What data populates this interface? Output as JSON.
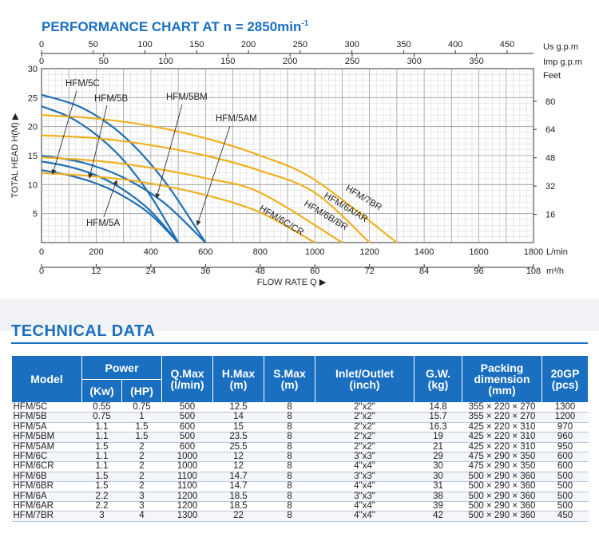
{
  "chart_data": {
    "type": "line",
    "title": "PERFORMANCE CHART AT n = 2850min",
    "title_superscript": "-1",
    "xlabel": "FLOW RATE Q ▶",
    "ylabel": "TOTAL HEAD H(M) ▶",
    "x_unit": "L/min",
    "x2_unit": "m³/h",
    "top_unit_us": "Us g.p.m",
    "top_unit_imp": "Imp g.p.m",
    "right_unit": "Feet",
    "xlim": [
      0,
      1800
    ],
    "ylim": [
      0,
      30
    ],
    "grid": true,
    "x_ticks": [
      "0",
      "200",
      "400",
      "600",
      "800",
      "1000",
      "1200",
      "1400",
      "1600",
      "1800"
    ],
    "m3h_ticks": [
      "0",
      "12",
      "24",
      "36",
      "48",
      "60",
      "72",
      "84",
      "96",
      "108"
    ],
    "us_gpm_ticks": [
      "0",
      "50",
      "100",
      "150",
      "200",
      "250",
      "300",
      "350",
      "400",
      "450"
    ],
    "imp_gpm_ticks": [
      "0",
      "50",
      "100",
      "150",
      "200",
      "250",
      "300",
      "350"
    ],
    "y_ticks": [
      "5",
      "10",
      "15",
      "20",
      "25",
      "30"
    ],
    "feet_ticks": [
      "16",
      "32",
      "48",
      "64",
      "80"
    ],
    "series": [
      {
        "name": "HFM/5C",
        "color": "#1f6fb5",
        "x": [
          0,
          100,
          200,
          300,
          400,
          500
        ],
        "y": [
          12.5,
          11.6,
          10.2,
          8.0,
          4.8,
          0
        ]
      },
      {
        "name": "HFM/5B",
        "color": "#1f6fb5",
        "x": [
          0,
          100,
          200,
          300,
          400,
          500
        ],
        "y": [
          14,
          13.1,
          11.6,
          9.1,
          5.4,
          0
        ]
      },
      {
        "name": "HFM/5A",
        "color": "#1f6fb5",
        "x": [
          0,
          150,
          300,
          450,
          600
        ],
        "y": [
          15,
          13.8,
          11.2,
          6.8,
          0
        ]
      },
      {
        "name": "HFM/5BM",
        "color": "#1f6fb5",
        "x": [
          0,
          100,
          200,
          300,
          400,
          500
        ],
        "y": [
          23.5,
          21.7,
          18.6,
          14.2,
          8.0,
          0
        ]
      },
      {
        "name": "HFM/5AM",
        "color": "#1f6fb5",
        "x": [
          0,
          150,
          300,
          450,
          600
        ],
        "y": [
          25.5,
          23.2,
          18.4,
          10.6,
          0
        ]
      },
      {
        "name": "HFM/6C/CR",
        "color": "#f0b020",
        "x": [
          0,
          200,
          400,
          600,
          800,
          1000
        ],
        "y": [
          12,
          11.4,
          10.2,
          8.2,
          5.2,
          0
        ]
      },
      {
        "name": "HFM/6B/BR",
        "color": "#f0b020",
        "x": [
          0,
          200,
          400,
          600,
          800,
          1100
        ],
        "y": [
          14.7,
          14.1,
          12.9,
          11.1,
          8.6,
          0
        ]
      },
      {
        "name": "HFM/6A/AR",
        "color": "#f0b020",
        "x": [
          0,
          200,
          400,
          600,
          800,
          1000,
          1200
        ],
        "y": [
          18.5,
          18.0,
          16.8,
          15.0,
          12.4,
          8.6,
          0
        ]
      },
      {
        "name": "HFM/7BR",
        "color": "#f0b020",
        "x": [
          0,
          200,
          400,
          600,
          800,
          1000,
          1300
        ],
        "y": [
          22,
          21.4,
          20.1,
          18.0,
          15.0,
          10.8,
          0
        ]
      }
    ]
  },
  "tech": {
    "title": "TECHNICAL DATA",
    "headers": {
      "model": "Model",
      "power": "Power",
      "kw": "(Kw)",
      "hp": "(HP)",
      "qmax_1": "Q.Max",
      "qmax_2": "(l/min)",
      "hmax_1": "H.Max",
      "hmax_2": "(m)",
      "smax_1": "S.Max",
      "smax_2": "(m)",
      "inlet_1": "Inlet/Outlet",
      "inlet_2": "(inch)",
      "gw_1": "G.W.",
      "gw_2": "(kg)",
      "pack_1": "Packing",
      "pack_2": "dimension",
      "pack_3": "(mm)",
      "gp_1": "20GP",
      "gp_2": "(pcs)"
    },
    "rows": [
      [
        "HFM/5C",
        "0.55",
        "0.75",
        "500",
        "12.5",
        "8",
        "2\"x2\"",
        "14.8",
        "355 × 220 × 270",
        "1300"
      ],
      [
        "HFM/5B",
        "0.75",
        "1",
        "500",
        "14",
        "8",
        "2\"x2\"",
        "15.7",
        "355 × 220 × 270",
        "1200"
      ],
      [
        "HFM/5A",
        "1.1",
        "1.5",
        "600",
        "15",
        "8",
        "2\"x2\"",
        "16.3",
        "425 × 220 × 310",
        "970"
      ],
      [
        "HFM/5BM",
        "1.1",
        "1.5",
        "500",
        "23.5",
        "8",
        "2\"x2\"",
        "19",
        "425 × 220 × 310",
        "960"
      ],
      [
        "HFM/5AM",
        "1.5",
        "2",
        "600",
        "25.5",
        "8",
        "2\"x2\"",
        "21",
        "425 × 220 × 310",
        "950"
      ],
      [
        "HFM/6C",
        "1.1",
        "2",
        "1000",
        "12",
        "8",
        "3\"x3\"",
        "29",
        "475 × 290 × 350",
        "600"
      ],
      [
        "HFM/6CR",
        "1.1",
        "2",
        "1000",
        "12",
        "8",
        "4\"x4\"",
        "30",
        "475 × 290 × 350",
        "600"
      ],
      [
        "HFM/6B",
        "1.5",
        "2",
        "1100",
        "14.7",
        "8",
        "3\"x3\"",
        "30",
        "500 × 290 × 360",
        "500"
      ],
      [
        "HFM/6BR",
        "1.5",
        "2",
        "1100",
        "14.7",
        "8",
        "4\"x4\"",
        "31",
        "500 × 290 × 360",
        "500"
      ],
      [
        "HFM/6A",
        "2.2",
        "3",
        "1200",
        "18.5",
        "8",
        "3\"x3\"",
        "38",
        "500 × 290 × 360",
        "500"
      ],
      [
        "HFM/6AR",
        "2.2",
        "3",
        "1200",
        "18.5",
        "8",
        "4\"x4\"",
        "39",
        "500 × 290 × 360",
        "500"
      ],
      [
        "HFM/7BR",
        "3",
        "4",
        "1300",
        "22",
        "8",
        "4\"x4\"",
        "42",
        "500 × 290 × 360",
        "450"
      ]
    ]
  }
}
